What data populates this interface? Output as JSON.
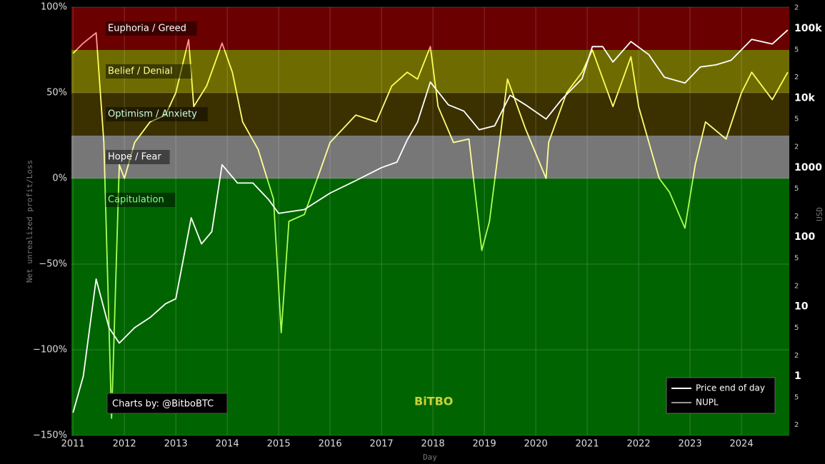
{
  "chart_data": {
    "type": "line",
    "y_label": "Net unrealized profit/Loss",
    "y2_label": "USD",
    "x_label": "Day",
    "credit": "Charts by: @BitboBTC",
    "watermark": "BiTBO",
    "xlim": [
      2010.97,
      2024.93
    ],
    "xticks": [
      2011,
      2012,
      2013,
      2014,
      2015,
      2016,
      2017,
      2018,
      2019,
      2020,
      2021,
      2022,
      2023,
      2024
    ],
    "ylim": [
      -150,
      100
    ],
    "yticks": [
      {
        "value": 100,
        "label": "100%"
      },
      {
        "value": 50,
        "label": "50%"
      },
      {
        "value": 0,
        "label": "0%"
      },
      {
        "value": -50,
        "label": "−50%"
      },
      {
        "value": -100,
        "label": "−100%"
      },
      {
        "value": -150,
        "label": "−150%"
      }
    ],
    "y2log": true,
    "y2lim": [
      0.141,
      203000
    ],
    "y2ticks": [
      {
        "value": 0.2,
        "label": "2"
      },
      {
        "value": 0.5,
        "label": "5"
      },
      1,
      {
        "value": 2,
        "label": "2"
      },
      {
        "value": 5,
        "label": "5"
      },
      10,
      {
        "value": 20,
        "label": "2"
      },
      {
        "value": 50,
        "label": "5"
      },
      100,
      {
        "value": 200,
        "label": "2"
      },
      {
        "value": 500,
        "label": "5"
      },
      1000,
      {
        "value": 2000,
        "label": "2"
      },
      {
        "value": 5000,
        "label": "5"
      },
      {
        "value": 10000,
        "label": "10k"
      },
      {
        "value": 20000,
        "label": "2"
      },
      {
        "value": 50000,
        "label": "5"
      },
      {
        "value": 100000,
        "label": "100k"
      },
      {
        "value": 200000,
        "label": "2"
      }
    ],
    "grid": true,
    "legend": "lower right",
    "zones": [
      {
        "name": "Euphoria / Greed",
        "from": 75,
        "to": 100,
        "color": "#6b0000",
        "text_color": "#ffffff",
        "line_color": "#ff9999"
      },
      {
        "name": "Belief / Denial",
        "from": 50,
        "to": 75,
        "color": "#6e6c00",
        "text_color": "#ffff99",
        "line_color": "#ffff55"
      },
      {
        "name": "Optimism / Anxiety",
        "from": 25,
        "to": 50,
        "color": "#3b3000",
        "text_color": "#ccffdd",
        "line_color": "#ffff77"
      },
      {
        "name": "Hope / Fear",
        "from": 0,
        "to": 25,
        "color": "#777777",
        "text_color": "#ffffff",
        "line_color": "#ffff99"
      },
      {
        "name": "Capitulation",
        "from": -150,
        "to": 0,
        "color": "#006400",
        "text_color": "#88ff88",
        "line_color": "#aaff55"
      }
    ],
    "series": [
      {
        "name": "Price end of day",
        "color": "#ffffff",
        "axis": "y2",
        "x": [
          2011.0,
          2011.2,
          2011.45,
          2011.7,
          2011.9,
          2012.2,
          2012.5,
          2012.8,
          2013.0,
          2013.3,
          2013.5,
          2013.7,
          2013.9,
          2014.2,
          2014.5,
          2014.8,
          2015.0,
          2015.5,
          2016.0,
          2016.5,
          2017.0,
          2017.3,
          2017.5,
          2017.7,
          2017.95,
          2018.3,
          2018.6,
          2018.9,
          2019.2,
          2019.5,
          2019.8,
          2020.2,
          2020.5,
          2020.9,
          2021.1,
          2021.3,
          2021.5,
          2021.85,
          2022.2,
          2022.5,
          2022.9,
          2023.2,
          2023.5,
          2023.8,
          2024.2,
          2024.6,
          2024.9
        ],
        "values": [
          0.3,
          1,
          25,
          5,
          3,
          5,
          7,
          11,
          13,
          190,
          80,
          120,
          1100,
          600,
          600,
          350,
          220,
          250,
          430,
          650,
          1000,
          1200,
          2500,
          4500,
          17000,
          8000,
          6500,
          3500,
          4000,
          11000,
          8000,
          5000,
          9500,
          19000,
          55000,
          55000,
          33000,
          65000,
          42000,
          20000,
          16500,
          28000,
          30000,
          35000,
          70000,
          60000,
          95000
        ]
      },
      {
        "name": "NUPL",
        "color": "#999999",
        "zoned": true,
        "x": [
          2011.0,
          2011.2,
          2011.45,
          2011.6,
          2011.75,
          2011.9,
          2012.0,
          2012.2,
          2012.5,
          2012.8,
          2013.0,
          2013.25,
          2013.35,
          2013.6,
          2013.9,
          2014.1,
          2014.3,
          2014.6,
          2014.9,
          2015.05,
          2015.2,
          2015.5,
          2015.8,
          2016.0,
          2016.5,
          2016.9,
          2017.2,
          2017.5,
          2017.7,
          2017.95,
          2018.1,
          2018.4,
          2018.7,
          2018.95,
          2019.1,
          2019.45,
          2019.8,
          2020.2,
          2020.25,
          2020.6,
          2020.9,
          2021.1,
          2021.5,
          2021.85,
          2022.0,
          2022.4,
          2022.6,
          2022.9,
          2023.1,
          2023.3,
          2023.7,
          2024.0,
          2024.2,
          2024.6,
          2024.9
        ],
        "values": [
          73,
          79,
          85,
          21,
          -140,
          8,
          0,
          21,
          33,
          37,
          50,
          81,
          42,
          54,
          79,
          62,
          33,
          17,
          -12,
          -90,
          -25,
          -21,
          4,
          21,
          37,
          33,
          54,
          62,
          58,
          77,
          42,
          21,
          23,
          -42,
          -25,
          58,
          29,
          0,
          21,
          50,
          62,
          75,
          42,
          71,
          42,
          0,
          -8,
          -29,
          8,
          33,
          23,
          50,
          62,
          46,
          62
        ]
      }
    ]
  }
}
